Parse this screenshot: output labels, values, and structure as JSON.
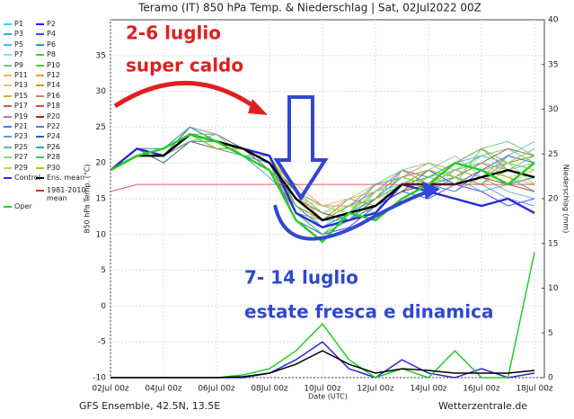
{
  "chart_data": {
    "type": "line",
    "title": "Teramo  (IT)  850 hPa Temp. & Niederschlag | Sat, 02Jul2022 00Z",
    "x_label": "Date (UTC)",
    "y_label": "850 hPa Temp. (°C)",
    "y2_label": "Niederschlag (mm)",
    "source_left": "GFS Ensemble, 42.5N, 13.5E",
    "source_right": "Wetterzentrale.de",
    "annotations": [
      {
        "text": "2-6 luglio",
        "color": "#e02020"
      },
      {
        "text": "super caldo",
        "color": "#e02020"
      },
      {
        "text": "7- 14 luglio",
        "color": "#3048d0"
      },
      {
        "text": "estate fresca e dinamica",
        "color": "#3048d0"
      }
    ],
    "categories": [
      "02Jul 00z",
      null,
      "04Jul 00z",
      null,
      "06Jul 00z",
      null,
      "08Jul 00z",
      null,
      "10Jul 00z",
      null,
      "12Jul 00z",
      null,
      "14Jul 00z",
      null,
      "16Jul 00z",
      null,
      "18Jul 00z"
    ],
    "ylim": [
      -10,
      40
    ],
    "yticks": [
      -10,
      -5,
      0,
      5,
      10,
      15,
      20,
      25,
      30,
      35
    ],
    "y2lim": [
      0,
      40
    ],
    "y2ticks": [
      0,
      5,
      10,
      15,
      20,
      25,
      30,
      35,
      40
    ],
    "grid": true,
    "series": [
      {
        "name": "P1",
        "color": "#00e5ff",
        "values": [
          19,
          22,
          21,
          25,
          23,
          22,
          21,
          14,
          12,
          13,
          15,
          18,
          17,
          19,
          18,
          20,
          19
        ]
      },
      {
        "name": "P2",
        "color": "#2020ff",
        "values": [
          19,
          21,
          22,
          24,
          22,
          21,
          20,
          12,
          10,
          11,
          14,
          16,
          15,
          17,
          16,
          14,
          15
        ]
      },
      {
        "name": "P3",
        "color": "#33b5a5",
        "values": [
          19,
          22,
          20,
          23,
          24,
          22,
          19,
          15,
          13,
          12,
          15,
          17,
          19,
          18,
          20,
          22,
          21
        ]
      },
      {
        "name": "P4",
        "color": "#4040ff",
        "values": [
          19,
          21,
          21,
          25,
          23,
          21,
          21,
          13,
          11,
          13,
          16,
          18,
          17,
          16,
          19,
          17,
          18
        ]
      },
      {
        "name": "P5",
        "color": "#40c0ff",
        "values": [
          19,
          22,
          21,
          24,
          24,
          22,
          20,
          16,
          12,
          14,
          13,
          19,
          20,
          18,
          17,
          21,
          23
        ]
      },
      {
        "name": "P6",
        "color": "#20a0a0",
        "values": [
          19,
          21,
          22,
          24,
          23,
          21,
          18,
          14,
          12,
          12,
          14,
          16,
          18,
          20,
          19,
          18,
          16
        ]
      },
      {
        "name": "P7",
        "color": "#80e0ff",
        "values": [
          19,
          22,
          21,
          23,
          22,
          22,
          21,
          15,
          11,
          14,
          15,
          17,
          16,
          19,
          21,
          19,
          20
        ]
      },
      {
        "name": "P8",
        "color": "#3ad03a",
        "values": [
          19,
          22,
          21,
          24,
          23,
          21,
          20,
          13,
          10,
          13,
          17,
          19,
          18,
          17,
          22,
          20,
          21
        ]
      },
      {
        "name": "P9",
        "color": "#80c080",
        "values": [
          19,
          21,
          22,
          25,
          23,
          22,
          19,
          16,
          14,
          13,
          15,
          17,
          19,
          21,
          18,
          20,
          17
        ]
      },
      {
        "name": "P10",
        "color": "#40d040",
        "values": [
          19,
          22,
          21,
          24,
          23,
          21,
          20,
          14,
          11,
          12,
          16,
          18,
          17,
          19,
          21,
          22,
          20
        ]
      },
      {
        "name": "P11",
        "color": "#e0c040",
        "values": [
          19,
          22,
          20,
          23,
          23,
          22,
          21,
          15,
          13,
          14,
          14,
          16,
          18,
          17,
          19,
          18,
          19
        ]
      },
      {
        "name": "P12",
        "color": "#f0a020",
        "values": [
          19,
          21,
          21,
          24,
          24,
          21,
          20,
          17,
          14,
          15,
          16,
          18,
          19,
          18,
          20,
          19,
          18
        ]
      },
      {
        "name": "P13",
        "color": "#d0d060",
        "values": [
          19,
          22,
          22,
          25,
          23,
          22,
          19,
          14,
          12,
          13,
          17,
          19,
          18,
          20,
          19,
          17,
          19
        ]
      },
      {
        "name": "P14",
        "color": "#c0a000",
        "values": [
          19,
          21,
          21,
          24,
          22,
          21,
          20,
          15,
          13,
          12,
          14,
          17,
          19,
          18,
          17,
          20,
          21
        ]
      },
      {
        "name": "P15",
        "color": "#e0b030",
        "values": [
          19,
          22,
          21,
          23,
          23,
          22,
          21,
          16,
          12,
          14,
          15,
          16,
          17,
          19,
          20,
          18,
          17
        ]
      },
      {
        "name": "P16",
        "color": "#d08060",
        "values": [
          19,
          21,
          22,
          24,
          23,
          21,
          20,
          14,
          11,
          13,
          16,
          18,
          20,
          19,
          18,
          21,
          20
        ]
      },
      {
        "name": "P17",
        "color": "#d06030",
        "values": [
          19,
          22,
          21,
          24,
          24,
          22,
          19,
          13,
          12,
          15,
          14,
          17,
          18,
          20,
          22,
          19,
          18
        ]
      },
      {
        "name": "P18",
        "color": "#c05050",
        "values": [
          19,
          21,
          21,
          25,
          23,
          22,
          21,
          15,
          13,
          12,
          15,
          19,
          17,
          18,
          20,
          22,
          21
        ]
      },
      {
        "name": "P19",
        "color": "#b08080",
        "values": [
          19,
          22,
          22,
          24,
          23,
          21,
          20,
          16,
          14,
          14,
          17,
          18,
          19,
          17,
          19,
          20,
          19
        ]
      },
      {
        "name": "P20",
        "color": "#a02020",
        "values": [
          19,
          21,
          21,
          23,
          22,
          22,
          21,
          14,
          12,
          13,
          14,
          16,
          17,
          19,
          18,
          17,
          16
        ]
      },
      {
        "name": "P21",
        "color": "#4080ff",
        "values": [
          19,
          22,
          21,
          24,
          23,
          21,
          20,
          13,
          10,
          12,
          15,
          17,
          16,
          18,
          17,
          15,
          14
        ]
      },
      {
        "name": "P22",
        "color": "#6080c0",
        "values": [
          19,
          21,
          22,
          25,
          24,
          22,
          19,
          15,
          12,
          14,
          16,
          19,
          18,
          20,
          21,
          20,
          22
        ]
      },
      {
        "name": "P23",
        "color": "#60a0d0",
        "values": [
          19,
          22,
          21,
          24,
          23,
          21,
          21,
          14,
          11,
          13,
          17,
          18,
          17,
          16,
          18,
          16,
          15
        ]
      },
      {
        "name": "P24",
        "color": "#2060c0",
        "values": [
          19,
          22,
          20,
          23,
          23,
          22,
          20,
          16,
          13,
          12,
          14,
          16,
          19,
          17,
          19,
          21,
          20
        ]
      },
      {
        "name": "P25",
        "color": "#40c0c0",
        "values": [
          19,
          21,
          21,
          24,
          22,
          21,
          20,
          15,
          12,
          14,
          16,
          17,
          18,
          19,
          20,
          19,
          21
        ]
      },
      {
        "name": "P26",
        "color": "#20b0b0",
        "values": [
          19,
          22,
          22,
          25,
          23,
          22,
          21,
          14,
          11,
          13,
          15,
          18,
          17,
          18,
          16,
          17,
          18
        ]
      },
      {
        "name": "P27",
        "color": "#80e080",
        "values": [
          19,
          21,
          21,
          24,
          24,
          21,
          19,
          16,
          13,
          15,
          17,
          19,
          20,
          18,
          21,
          20,
          19
        ]
      },
      {
        "name": "P28",
        "color": "#50c050",
        "values": [
          19,
          22,
          21,
          23,
          23,
          22,
          20,
          13,
          10,
          12,
          14,
          17,
          18,
          20,
          22,
          23,
          21
        ]
      },
      {
        "name": "P29",
        "color": "#b0e040",
        "values": [
          19,
          21,
          22,
          24,
          23,
          21,
          21,
          15,
          14,
          13,
          16,
          18,
          17,
          19,
          18,
          20,
          22
        ]
      },
      {
        "name": "P30",
        "color": "#a0d000",
        "values": [
          19,
          22,
          21,
          24,
          22,
          22,
          20,
          14,
          12,
          14,
          15,
          17,
          19,
          18,
          17,
          19,
          20
        ]
      },
      {
        "name": "Control",
        "color": "#2a2ad8",
        "bold": true,
        "values": [
          19,
          22,
          21,
          24,
          23,
          22,
          21,
          13,
          11,
          12,
          13,
          17,
          16,
          15,
          14,
          15,
          13
        ]
      },
      {
        "name": "Ens. mean",
        "color": "#000000",
        "bold": true,
        "values": [
          19,
          21,
          21,
          24,
          23,
          22,
          20,
          15,
          12,
          13,
          14,
          17,
          17,
          17,
          18,
          19,
          18
        ]
      },
      {
        "name": "1981-2010 mean",
        "color": "#e03030",
        "values": [
          16,
          17,
          17,
          17,
          17,
          17,
          17,
          17,
          17,
          17,
          17,
          17,
          17,
          17,
          17,
          17,
          17
        ]
      },
      {
        "name": "Oper",
        "color": "#20d020",
        "bold": true,
        "values": [
          19,
          21,
          22,
          24,
          23,
          21,
          19,
          12,
          9,
          13,
          12,
          15,
          17,
          20,
          19,
          17,
          20
        ]
      }
    ],
    "precipitation": [
      {
        "color": "#2a2ad8",
        "axis": "y2",
        "values": [
          0,
          0,
          0,
          0,
          0,
          0,
          0.5,
          2,
          4,
          1,
          0,
          2,
          0.5,
          0,
          1,
          0,
          0.5
        ]
      },
      {
        "color": "#20d020",
        "axis": "y2",
        "values": [
          0,
          0,
          0,
          0,
          0,
          0.3,
          1,
          3,
          6,
          2,
          0,
          1,
          0,
          3,
          0,
          0,
          14
        ]
      },
      {
        "color": "#000000",
        "axis": "y2",
        "values": [
          0,
          0,
          0,
          0,
          0,
          0.1,
          0.5,
          1.5,
          3,
          1.5,
          0.5,
          1,
          0.8,
          0.5,
          0.5,
          0.5,
          0.8
        ]
      }
    ]
  }
}
